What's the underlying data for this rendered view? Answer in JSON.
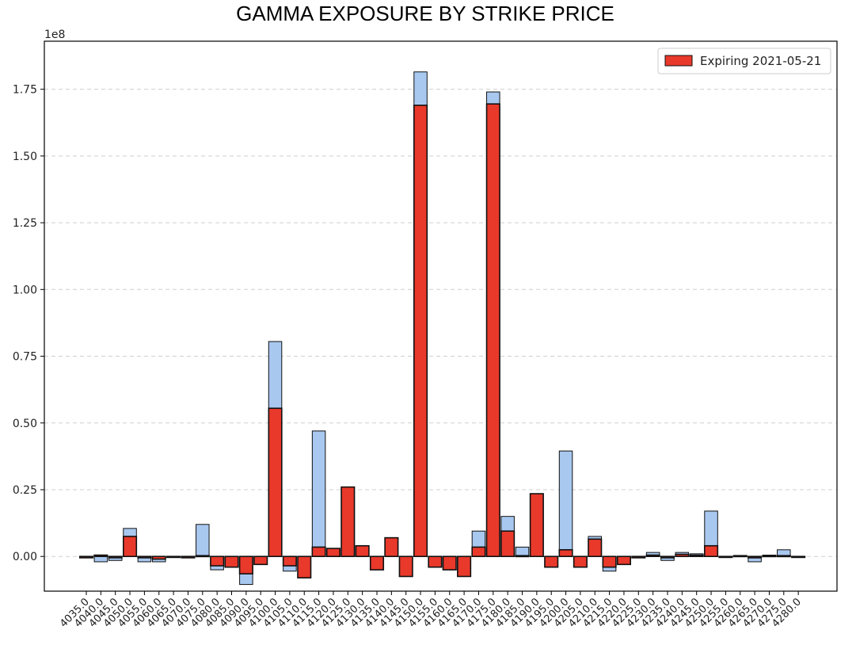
{
  "chart_data": {
    "type": "bar",
    "title": "GAMMA EXPOSURE BY STRIKE PRICE",
    "xlabel": "",
    "ylabel": "",
    "y_multiplier_label": "1e8",
    "ylim": [
      -0.13,
      1.93
    ],
    "yticks": [
      "0.00",
      "0.25",
      "0.50",
      "0.75",
      "1.00",
      "1.25",
      "1.50",
      "1.75"
    ],
    "yticks_values": [
      0,
      0.25,
      0.5,
      0.75,
      1.0,
      1.25,
      1.5,
      1.75
    ],
    "grid": "horizontal dashed",
    "legend_position": "top-right",
    "colors": {
      "expiring": "#e8392b",
      "total": "#a8c8f0",
      "edge": "#111111"
    },
    "categories": [
      "4035.0",
      "4040.0",
      "4045.0",
      "4050.0",
      "4055.0",
      "4060.0",
      "4065.0",
      "4070.0",
      "4075.0",
      "4080.0",
      "4085.0",
      "4090.0",
      "4095.0",
      "4100.0",
      "4105.0",
      "4110.0",
      "4115.0",
      "4120.0",
      "4125.0",
      "4130.0",
      "4135.0",
      "4140.0",
      "4145.0",
      "4150.0",
      "4155.0",
      "4160.0",
      "4165.0",
      "4170.0",
      "4175.0",
      "4180.0",
      "4185.0",
      "4190.0",
      "4195.0",
      "4200.0",
      "4205.0",
      "4210.0",
      "4215.0",
      "4220.0",
      "4225.0",
      "4230.0",
      "4235.0",
      "4240.0",
      "4245.0",
      "4250.0",
      "4255.0",
      "4260.0",
      "4265.0",
      "4270.0",
      "4275.0",
      "4280.0"
    ],
    "series": [
      {
        "role": "total",
        "values": [
          -0.005,
          -0.02,
          -0.015,
          0.105,
          -0.02,
          -0.02,
          -0.003,
          -0.005,
          0.12,
          -0.05,
          -0.04,
          -0.105,
          -0.03,
          0.805,
          -0.055,
          -0.08,
          0.47,
          0.03,
          0.26,
          0.04,
          -0.05,
          0.07,
          -0.075,
          1.815,
          -0.04,
          -0.05,
          -0.075,
          0.095,
          1.74,
          0.15,
          0.035,
          0.235,
          -0.04,
          0.395,
          -0.04,
          0.075,
          -0.055,
          -0.03,
          -0.005,
          0.015,
          -0.015,
          0.015,
          0.01,
          0.17,
          -0.003,
          0.003,
          -0.02,
          0.005,
          0.025,
          -0.003
        ]
      },
      {
        "name": "Expiring 2021-05-21",
        "role": "expiring",
        "values": [
          -0.005,
          0.005,
          -0.005,
          0.075,
          -0.005,
          -0.01,
          -0.003,
          -0.005,
          0.003,
          -0.035,
          -0.04,
          -0.065,
          -0.03,
          0.555,
          -0.035,
          -0.08,
          0.035,
          0.03,
          0.26,
          0.04,
          -0.05,
          0.07,
          -0.075,
          1.69,
          -0.04,
          -0.05,
          -0.075,
          0.035,
          1.695,
          0.095,
          0.003,
          0.235,
          -0.04,
          0.025,
          -0.04,
          0.065,
          -0.04,
          -0.03,
          -0.005,
          0.005,
          -0.005,
          0.008,
          0.005,
          0.04,
          -0.003,
          0.003,
          -0.005,
          0.003,
          0.003,
          -0.003
        ]
      }
    ]
  }
}
